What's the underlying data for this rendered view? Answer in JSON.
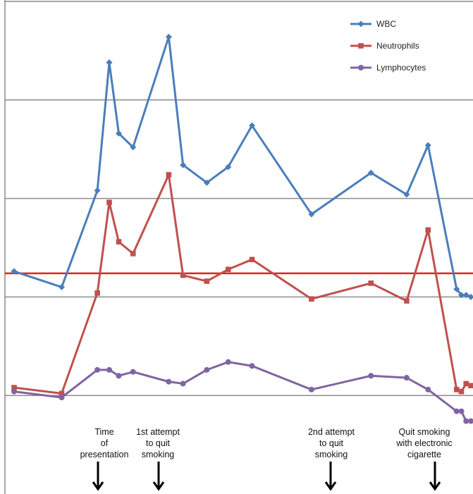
{
  "chart_data": {
    "type": "line",
    "title": "",
    "xlabel": "",
    "ylabel": "",
    "ylim": [
      0,
      25
    ],
    "grid": true,
    "legend_position": "top-right",
    "colors": {
      "threshold": "#e2231a",
      "gridline": "#8c8c8c",
      "axis": "#8c8c8c"
    },
    "threshold_value": 11.2,
    "series": [
      {
        "name": "WBC",
        "color": "#4a7ebb",
        "marker": "diamond",
        "points": [
          [
            0.0,
            11.3
          ],
          [
            2.0,
            10.5
          ],
          [
            3.5,
            15.4
          ],
          [
            4.0,
            21.9
          ],
          [
            4.4,
            18.3
          ],
          [
            5.0,
            17.6
          ],
          [
            6.5,
            23.2
          ],
          [
            7.1,
            16.7
          ],
          [
            8.1,
            15.8
          ],
          [
            9.0,
            16.6
          ],
          [
            10.0,
            18.7
          ],
          [
            12.5,
            14.2
          ],
          [
            15.0,
            16.3
          ],
          [
            16.5,
            15.2
          ],
          [
            17.4,
            17.7
          ],
          [
            18.6,
            10.4
          ],
          [
            18.8,
            10.1
          ],
          [
            19.0,
            10.1
          ],
          [
            19.2,
            10.0
          ]
        ]
      },
      {
        "name": "Neutrophils",
        "color": "#c0504d",
        "marker": "square",
        "points": [
          [
            0.0,
            5.4
          ],
          [
            2.0,
            5.1
          ],
          [
            3.5,
            10.2
          ],
          [
            4.0,
            14.8
          ],
          [
            4.4,
            12.8
          ],
          [
            5.0,
            12.2
          ],
          [
            6.5,
            16.2
          ],
          [
            7.1,
            11.1
          ],
          [
            8.1,
            10.8
          ],
          [
            9.0,
            11.4
          ],
          [
            10.0,
            11.9
          ],
          [
            12.5,
            9.9
          ],
          [
            15.0,
            10.7
          ],
          [
            16.5,
            9.8
          ],
          [
            17.4,
            13.4
          ],
          [
            18.6,
            5.3
          ],
          [
            18.8,
            5.2
          ],
          [
            19.0,
            5.6
          ],
          [
            19.2,
            5.5
          ]
        ]
      },
      {
        "name": "Lymphocytes",
        "color": "#8064a2",
        "marker": "circle",
        "points": [
          [
            0.0,
            5.2
          ],
          [
            2.0,
            4.9
          ],
          [
            3.5,
            6.3
          ],
          [
            4.0,
            6.3
          ],
          [
            4.4,
            6.0
          ],
          [
            5.0,
            6.2
          ],
          [
            6.5,
            5.7
          ],
          [
            7.1,
            5.6
          ],
          [
            8.1,
            6.3
          ],
          [
            9.0,
            6.7
          ],
          [
            10.0,
            6.5
          ],
          [
            12.5,
            5.3
          ],
          [
            15.0,
            6.0
          ],
          [
            16.5,
            5.9
          ],
          [
            17.4,
            5.3
          ],
          [
            18.6,
            4.2
          ],
          [
            18.8,
            4.2
          ],
          [
            19.0,
            3.7
          ],
          [
            19.2,
            3.7
          ]
        ]
      }
    ],
    "annotations": [
      {
        "lines": [
          "Time",
          "of",
          "presentation"
        ],
        "x": 3.7
      },
      {
        "lines": [
          "1st attempt",
          "to quit",
          "smoking"
        ],
        "x": 6.5
      },
      {
        "lines": [
          "2nd attempt",
          "to quit",
          "smoking"
        ],
        "x": 13.5
      },
      {
        "lines": [
          "Quit smoking",
          "with electronic",
          "cigarette"
        ],
        "x": 17.5
      }
    ]
  }
}
